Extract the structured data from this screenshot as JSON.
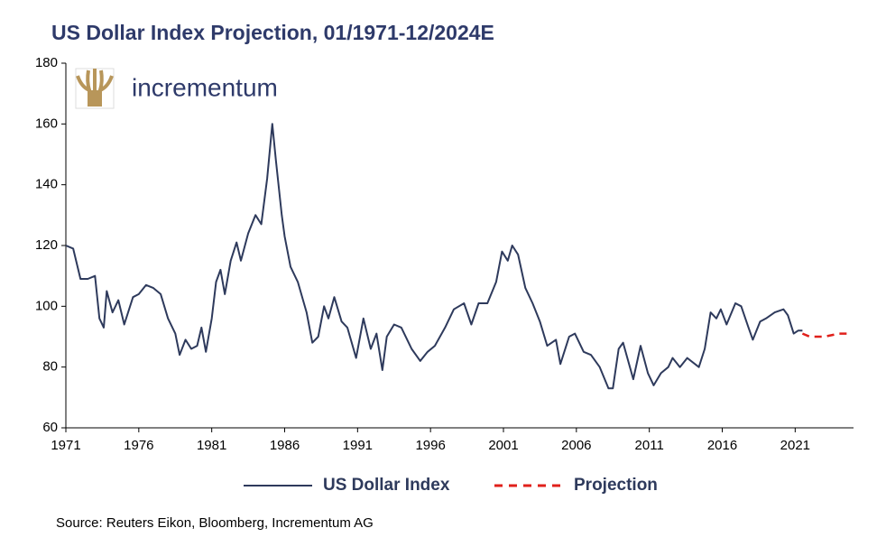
{
  "chart_data": {
    "type": "line",
    "title": "US Dollar Index Projection, 01/1971-12/2024E",
    "logo": "incrementum",
    "source": "Source: Reuters Eikon, Bloomberg, Incrementum AG",
    "xlim": [
      1971,
      2025
    ],
    "xticks": [
      1971,
      1976,
      1981,
      1986,
      1991,
      1996,
      2001,
      2006,
      2011,
      2016,
      2021
    ],
    "ylim": [
      60,
      180
    ],
    "yticks": [
      60,
      80,
      100,
      120,
      140,
      160,
      180
    ],
    "series": [
      {
        "name": "US Dollar Index",
        "color": "#2e3a5c",
        "style": "solid",
        "x": [
          1971.0,
          1971.5,
          1972.0,
          1972.5,
          1973.0,
          1973.3,
          1973.6,
          1973.8,
          1974.2,
          1974.6,
          1975.0,
          1975.6,
          1976.0,
          1976.5,
          1977.0,
          1977.5,
          1978.0,
          1978.5,
          1978.8,
          1979.2,
          1979.6,
          1980.0,
          1980.3,
          1980.6,
          1981.0,
          1981.3,
          1981.6,
          1981.9,
          1982.3,
          1982.7,
          1983.0,
          1983.5,
          1984.0,
          1984.4,
          1984.8,
          1985.15,
          1985.4,
          1985.8,
          1986.0,
          1986.4,
          1986.9,
          1987.5,
          1987.9,
          1988.3,
          1988.7,
          1989.0,
          1989.4,
          1989.9,
          1990.3,
          1990.9,
          1991.4,
          1991.9,
          1992.3,
          1992.7,
          1993.0,
          1993.5,
          1994.0,
          1994.7,
          1995.3,
          1995.8,
          1996.3,
          1997.0,
          1997.6,
          1998.3,
          1998.8,
          1999.3,
          1999.9,
          2000.5,
          2000.9,
          2001.3,
          2001.6,
          2002.0,
          2002.5,
          2003.0,
          2003.5,
          2004.0,
          2004.6,
          2004.9,
          2005.5,
          2005.9,
          2006.5,
          2007.0,
          2007.6,
          2008.2,
          2008.5,
          2008.9,
          2009.2,
          2009.9,
          2010.4,
          2010.9,
          2011.3,
          2011.8,
          2012.3,
          2012.6,
          2013.1,
          2013.6,
          2014.4,
          2014.8,
          2015.2,
          2015.6,
          2015.9,
          2016.3,
          2016.9,
          2017.3,
          2017.8,
          2018.1,
          2018.6,
          2019.0,
          2019.6,
          2020.2,
          2020.5,
          2020.9,
          2021.2,
          2021.5
        ],
        "values": [
          120,
          119,
          109,
          109,
          110,
          96,
          93,
          105,
          98,
          102,
          94,
          103,
          104,
          107,
          106,
          104,
          96,
          91,
          84,
          89,
          86,
          87,
          93,
          85,
          96,
          108,
          112,
          104,
          115,
          121,
          115,
          124,
          130,
          127,
          142,
          160,
          148,
          130,
          123,
          113,
          108,
          98,
          88,
          90,
          100,
          96,
          103,
          95,
          93,
          83,
          96,
          86,
          91,
          79,
          90,
          94,
          93,
          86,
          82,
          85,
          87,
          93,
          99,
          101,
          94,
          101,
          101,
          108,
          118,
          115,
          120,
          117,
          106,
          101,
          95,
          87,
          89,
          81,
          90,
          91,
          85,
          84,
          80,
          73,
          73,
          86,
          88,
          76,
          87,
          78,
          74,
          78,
          80,
          83,
          80,
          83,
          80,
          86,
          98,
          96,
          99,
          94,
          101,
          100,
          93,
          89,
          95,
          96,
          98,
          99,
          97,
          91,
          92,
          92
        ]
      },
      {
        "name": "Projection",
        "color": "#e0201b",
        "style": "dashed",
        "x": [
          2021.5,
          2022.0,
          2023.0,
          2024.0,
          2024.8
        ],
        "values": [
          91,
          90,
          90,
          91,
          91
        ]
      }
    ]
  }
}
